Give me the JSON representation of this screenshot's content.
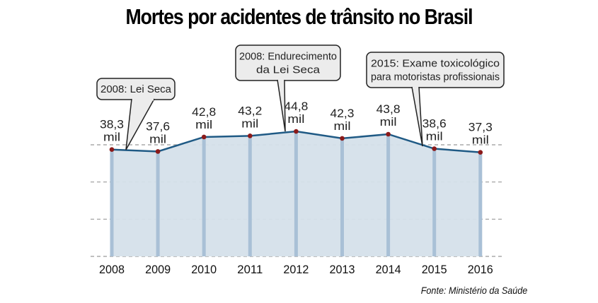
{
  "chart_data": {
    "type": "area",
    "title": "Mortes por acidentes de trânsito no Brasil",
    "xlabel": "",
    "ylabel": "",
    "categories": [
      "2008",
      "2009",
      "2010",
      "2011",
      "2012",
      "2013",
      "2014",
      "2015",
      "2016"
    ],
    "values": [
      38.3,
      37.6,
      42.8,
      43.2,
      44.8,
      42.3,
      43.8,
      38.6,
      37.3
    ],
    "unit": "mil",
    "value_labels": [
      "38,3",
      "37,6",
      "42,8",
      "43,2",
      "44,8",
      "42,3",
      "43,8",
      "38,6",
      "37,3"
    ],
    "ylim": [
      0,
      40
    ],
    "grid": true,
    "annotations": [
      {
        "text_lines": [
          "2008: Lei Seca"
        ],
        "x": "2008"
      },
      {
        "text_lines": [
          "2008: Endurecimento",
          "da Lei Seca"
        ],
        "x": "2012"
      },
      {
        "text_lines": [
          "2015: Exame toxicológico",
          "para motoristas profissionais"
        ],
        "x": "2015"
      }
    ],
    "source": "Fonte: Ministério da Saúde",
    "colors": {
      "line": "#1f5a85",
      "fill": "#d5e0ea",
      "bar": "#a9c0d6",
      "point": "#8b1a1a",
      "grid": "#999999"
    }
  }
}
